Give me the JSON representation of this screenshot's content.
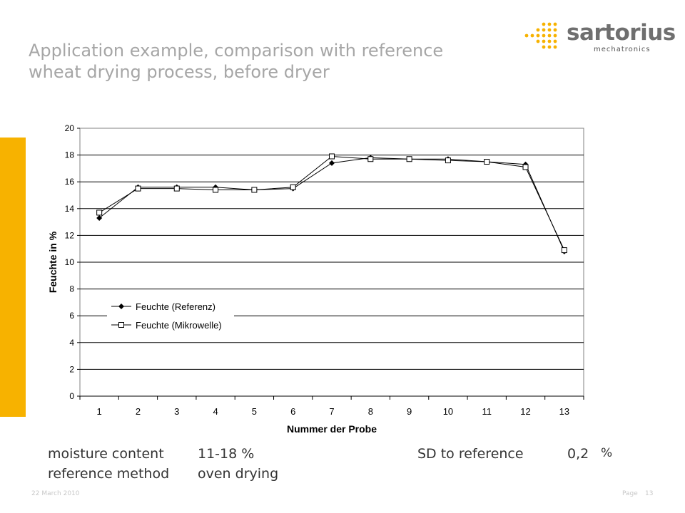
{
  "title": {
    "line1": "Application example, comparison with reference",
    "line2": "wheat drying process, before dryer"
  },
  "logo": {
    "name": "sartorius",
    "sub": "mechatronics"
  },
  "accent_color": "#f7b200",
  "chart_data": {
    "type": "line",
    "xlabel": "Nummer der Probe",
    "ylabel": "Feuchte in %",
    "categories": [
      "1",
      "2",
      "3",
      "4",
      "5",
      "6",
      "7",
      "8",
      "9",
      "10",
      "11",
      "12",
      "13"
    ],
    "ylim": [
      0,
      20
    ],
    "yticks": [
      "0",
      "2",
      "4",
      "6",
      "8",
      "10",
      "12",
      "14",
      "16",
      "18",
      "20"
    ],
    "grid": true,
    "legend_position": "left-center",
    "series": [
      {
        "name": "Feuchte (Referenz)",
        "marker": "diamond-filled",
        "values": [
          13.3,
          15.6,
          15.6,
          15.6,
          15.4,
          15.5,
          17.4,
          17.8,
          17.7,
          17.7,
          17.5,
          17.3,
          10.8
        ]
      },
      {
        "name": "Feuchte (Mikrowelle)",
        "marker": "square-open",
        "values": [
          13.7,
          15.5,
          15.5,
          15.4,
          15.4,
          15.6,
          17.9,
          17.7,
          17.7,
          17.6,
          17.5,
          17.1,
          10.9
        ]
      }
    ]
  },
  "info": {
    "moisture_label": "moisture content",
    "moisture_value": "11-18 %",
    "sd_label": "SD to reference",
    "sd_value": "0,2",
    "sd_unit": "%",
    "ref_label": "reference method",
    "ref_value": "oven drying"
  },
  "footer": {
    "date": "22 March 2010",
    "page_label": "Page",
    "page_number": "13"
  }
}
